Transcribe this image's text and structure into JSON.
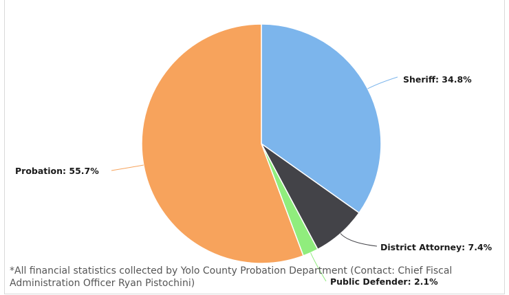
{
  "chart_data": {
    "type": "pie",
    "title": "",
    "slices": [
      {
        "label": "Sheriff",
        "value": 34.8,
        "color": "#7cb5ec",
        "label_text": "Sheriff: 34.8%"
      },
      {
        "label": "District Attorney",
        "value": 7.4,
        "color": "#434348",
        "label_text": "District Attorney: 7.4%"
      },
      {
        "label": "Public Defender",
        "value": 2.1,
        "color": "#90ed7d",
        "label_text": "Public Defender: 2.1%"
      },
      {
        "label": "Probation",
        "value": 55.7,
        "color": "#f7a35c",
        "label_text": "Probation: 55.7%"
      }
    ],
    "start_angle": "12 o'clock",
    "direction": "clockwise",
    "legend": "none"
  },
  "footnote": "*All financial statistics collected by Yolo County Probation Department (Contact: Chief Fiscal Administration Officer Ryan Pistochini)"
}
